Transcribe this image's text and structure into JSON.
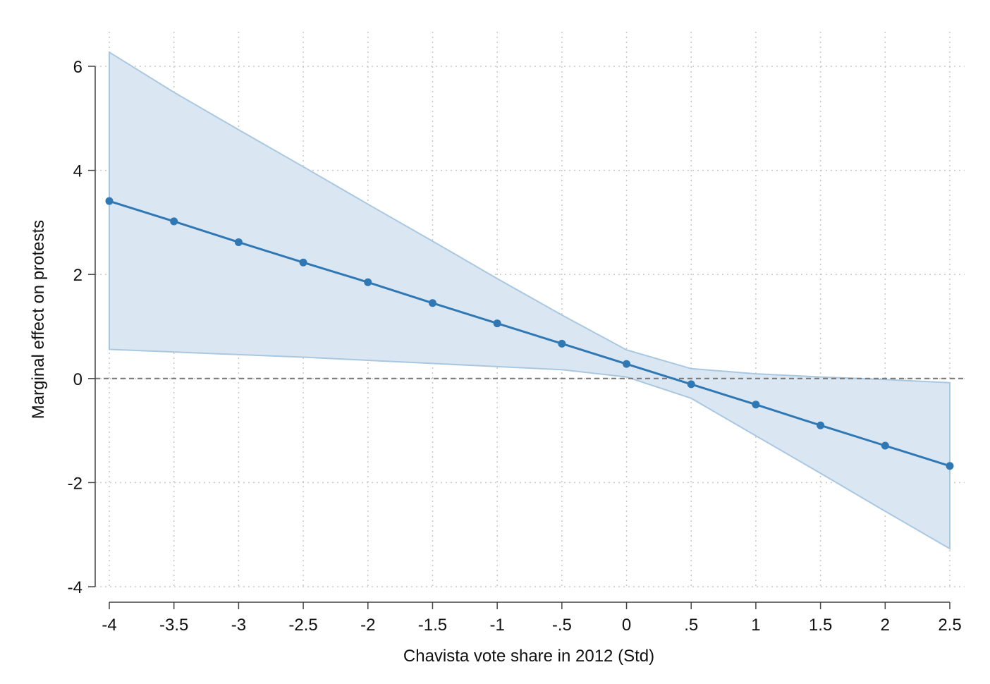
{
  "chart_data": {
    "type": "line",
    "title": "",
    "xlabel": "Chavista vote share in 2012 (Std)",
    "ylabel": "Marginal effect on protests",
    "xlim": [
      -4,
      2.5
    ],
    "ylim": [
      -4,
      6.3
    ],
    "x_ticks": [
      -4,
      -3.5,
      -3,
      -2.5,
      -2,
      -1.5,
      -1,
      -0.5,
      0,
      0.5,
      1,
      1.5,
      2,
      2.5
    ],
    "x_tick_labels": [
      "-4",
      "-3.5",
      "-3",
      "-2.5",
      "-2",
      "-1.5",
      "-1",
      "-.5",
      "0",
      ".5",
      "1",
      "1.5",
      "2",
      "2.5"
    ],
    "y_ticks": [
      -4,
      -2,
      0,
      2,
      4,
      6
    ],
    "y_tick_labels": [
      "-4",
      "-2",
      "0",
      "2",
      "4",
      "6"
    ],
    "grid": true,
    "reference_line_y": 0,
    "series": [
      {
        "name": "Marginal effect",
        "x": [
          -4,
          -3.5,
          -3,
          -2.5,
          -2,
          -1.5,
          -1,
          -0.5,
          0,
          0.5,
          1,
          1.5,
          2,
          2.5
        ],
        "y": [
          3.41,
          3.02,
          2.62,
          2.23,
          1.85,
          1.45,
          1.06,
          0.67,
          0.28,
          -0.11,
          -0.5,
          -0.9,
          -1.29,
          -1.68
        ],
        "ci_upper": [
          6.27,
          5.5,
          4.78,
          4.07,
          3.35,
          2.64,
          1.92,
          1.22,
          0.55,
          0.19,
          0.09,
          0.03,
          -0.02,
          -0.08
        ],
        "ci_lower": [
          0.56,
          0.51,
          0.46,
          0.41,
          0.35,
          0.29,
          0.23,
          0.17,
          0.03,
          -0.38,
          -1.1,
          -1.82,
          -2.55,
          -3.27
        ]
      }
    ],
    "colors": {
      "line": "#2f78b4",
      "marker": "#2f78b4",
      "band_fill": "#dbe6f3",
      "band_edge": "#a9c8e0",
      "grid": "#c8c8c8",
      "axis": "#444444",
      "reference": "#777777"
    }
  }
}
